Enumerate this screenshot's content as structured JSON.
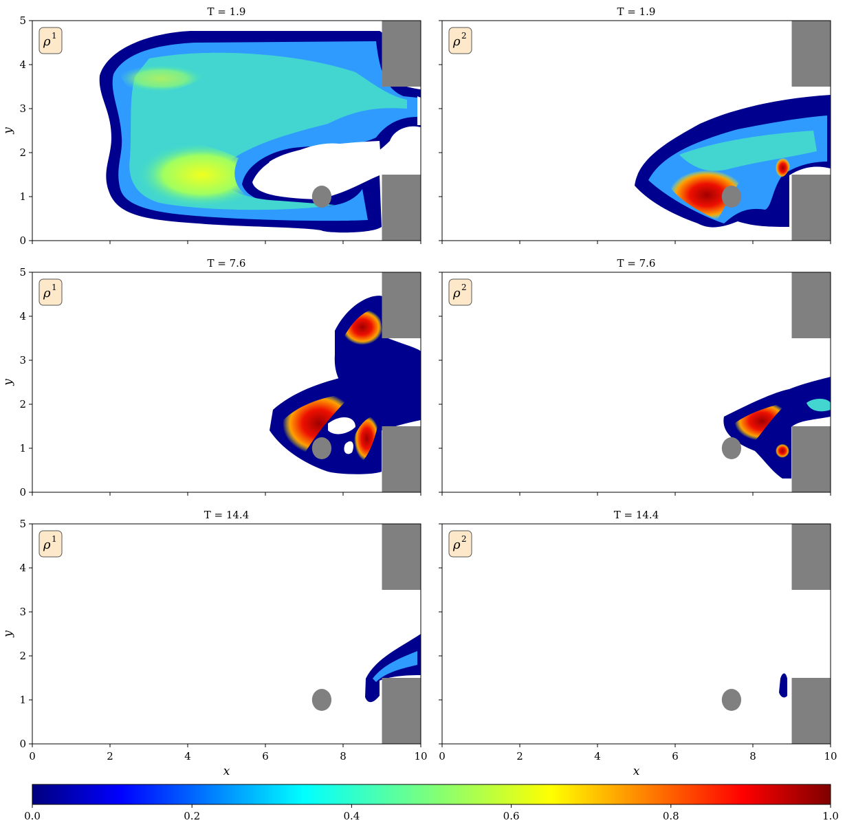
{
  "figure": {
    "colorbar": {
      "colormap": "jet",
      "range": [
        0.0,
        1.0
      ],
      "tick_labels": [
        "0.0",
        "0.2",
        "0.4",
        "0.6",
        "0.8",
        "1.0"
      ]
    }
  },
  "chart_data": [
    {
      "type": "heatmap",
      "panel": "row1-left",
      "title": "T = 1.9",
      "badge": "ρ",
      "badge_sup": "1",
      "xlim": [
        0,
        10
      ],
      "ylim": [
        0,
        5
      ],
      "xticks": [
        "0",
        "2",
        "4",
        "6",
        "8",
        "10"
      ],
      "yticks": [
        "0",
        "1",
        "2",
        "3",
        "4",
        "5"
      ],
      "xlabel": "",
      "ylabel": "y",
      "obstacle_color": "#808080",
      "obstacles": [
        {
          "shape": "circle",
          "cx": 7.45,
          "cy": 1.0,
          "r": 0.25
        },
        {
          "shape": "rect",
          "x0": 9.0,
          "x1": 10.0,
          "y0": 3.5,
          "y1": 5.0
        },
        {
          "shape": "rect",
          "x0": 9.0,
          "x1": 10.0,
          "y0": 0.0,
          "y1": 1.5
        }
      ]
    },
    {
      "type": "heatmap",
      "panel": "row1-right",
      "title": "T = 1.9",
      "badge": "ρ",
      "badge_sup": "2",
      "xlim": [
        0,
        10
      ],
      "ylim": [
        0,
        5
      ],
      "xticks": [
        "0",
        "2",
        "4",
        "6",
        "8",
        "10"
      ],
      "yticks": [],
      "xlabel": "",
      "ylabel": "",
      "obstacle_color": "#808080",
      "obstacles": [
        {
          "shape": "circle",
          "cx": 7.45,
          "cy": 1.0,
          "r": 0.25
        },
        {
          "shape": "rect",
          "x0": 9.0,
          "x1": 10.0,
          "y0": 3.5,
          "y1": 5.0
        },
        {
          "shape": "rect",
          "x0": 9.0,
          "x1": 10.0,
          "y0": 0.0,
          "y1": 1.5
        }
      ]
    },
    {
      "type": "heatmap",
      "panel": "row2-left",
      "title": "T = 7.6",
      "badge": "ρ",
      "badge_sup": "1",
      "xlim": [
        0,
        10
      ],
      "ylim": [
        0,
        5
      ],
      "xticks": [
        "0",
        "2",
        "4",
        "6",
        "8",
        "10"
      ],
      "yticks": [
        "0",
        "1",
        "2",
        "3",
        "4",
        "5"
      ],
      "xlabel": "",
      "ylabel": "y",
      "obstacle_color": "#808080",
      "obstacles": [
        {
          "shape": "circle",
          "cx": 7.45,
          "cy": 1.0,
          "r": 0.25
        },
        {
          "shape": "rect",
          "x0": 9.0,
          "x1": 10.0,
          "y0": 3.5,
          "y1": 5.0
        },
        {
          "shape": "rect",
          "x0": 9.0,
          "x1": 10.0,
          "y0": 0.0,
          "y1": 1.5
        }
      ]
    },
    {
      "type": "heatmap",
      "panel": "row2-right",
      "title": "T = 7.6",
      "badge": "ρ",
      "badge_sup": "2",
      "xlim": [
        0,
        10
      ],
      "ylim": [
        0,
        5
      ],
      "xticks": [
        "0",
        "2",
        "4",
        "6",
        "8",
        "10"
      ],
      "yticks": [],
      "xlabel": "",
      "ylabel": "",
      "obstacle_color": "#808080",
      "obstacles": [
        {
          "shape": "circle",
          "cx": 7.45,
          "cy": 1.0,
          "r": 0.25
        },
        {
          "shape": "rect",
          "x0": 9.0,
          "x1": 10.0,
          "y0": 3.5,
          "y1": 5.0
        },
        {
          "shape": "rect",
          "x0": 9.0,
          "x1": 10.0,
          "y0": 0.0,
          "y1": 1.5
        }
      ]
    },
    {
      "type": "heatmap",
      "panel": "row3-left",
      "title": "T = 14.4",
      "badge": "ρ",
      "badge_sup": "1",
      "xlim": [
        0,
        10
      ],
      "ylim": [
        0,
        5
      ],
      "xticks": [
        "0",
        "2",
        "4",
        "6",
        "8",
        "10"
      ],
      "yticks": [
        "0",
        "1",
        "2",
        "3",
        "4",
        "5"
      ],
      "xlabel": "x",
      "ylabel": "y",
      "obstacle_color": "#808080",
      "obstacles": [
        {
          "shape": "circle",
          "cx": 7.45,
          "cy": 1.0,
          "r": 0.25
        },
        {
          "shape": "rect",
          "x0": 9.0,
          "x1": 10.0,
          "y0": 3.5,
          "y1": 5.0
        },
        {
          "shape": "rect",
          "x0": 9.0,
          "x1": 10.0,
          "y0": 0.0,
          "y1": 1.5
        }
      ]
    },
    {
      "type": "heatmap",
      "panel": "row3-right",
      "title": "T = 14.4",
      "badge": "ρ",
      "badge_sup": "2",
      "xlim": [
        0,
        10
      ],
      "ylim": [
        0,
        5
      ],
      "xticks": [
        "0",
        "2",
        "4",
        "6",
        "8",
        "10"
      ],
      "yticks": [],
      "xlabel": "x",
      "ylabel": "",
      "obstacle_color": "#808080",
      "obstacles": [
        {
          "shape": "circle",
          "cx": 7.45,
          "cy": 1.0,
          "r": 0.25
        },
        {
          "shape": "rect",
          "x0": 9.0,
          "x1": 10.0,
          "y0": 3.5,
          "y1": 5.0
        },
        {
          "shape": "rect",
          "x0": 9.0,
          "x1": 10.0,
          "y0": 0.0,
          "y1": 1.5
        }
      ]
    }
  ]
}
